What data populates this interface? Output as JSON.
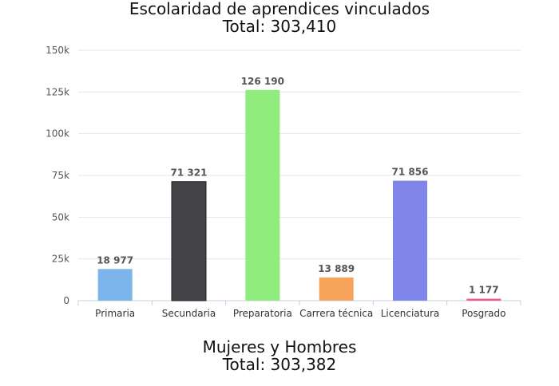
{
  "chart_data": {
    "type": "bar",
    "title": "Escolaridad de aprendices vinculados",
    "subtitle": "Total: 303,410",
    "categories": [
      "Primaria",
      "Secundaria",
      "Preparatoria",
      "Carrera técnica",
      "Licenciatura",
      "Posgrado"
    ],
    "values": [
      18977,
      71321,
      126190,
      13889,
      71856,
      1177
    ],
    "data_labels": [
      "18 977",
      "71 321",
      "126 190",
      "13 889",
      "71 856",
      "1 177"
    ],
    "colors": [
      "#7cb5ec",
      "#434348",
      "#90ed7d",
      "#f7a35c",
      "#8085e9",
      "#f15c80"
    ],
    "ylim": [
      0,
      150000
    ],
    "yticks": [
      0,
      25000,
      50000,
      75000,
      100000,
      125000,
      150000
    ],
    "ytick_labels": [
      "0",
      "25k",
      "50k",
      "75k",
      "100k",
      "125k",
      "150k"
    ],
    "grid": true,
    "legend": "none",
    "xlabel": "",
    "ylabel": ""
  },
  "footer": {
    "title": "Mujeres y Hombres",
    "subtitle": "Total: 303,382"
  }
}
